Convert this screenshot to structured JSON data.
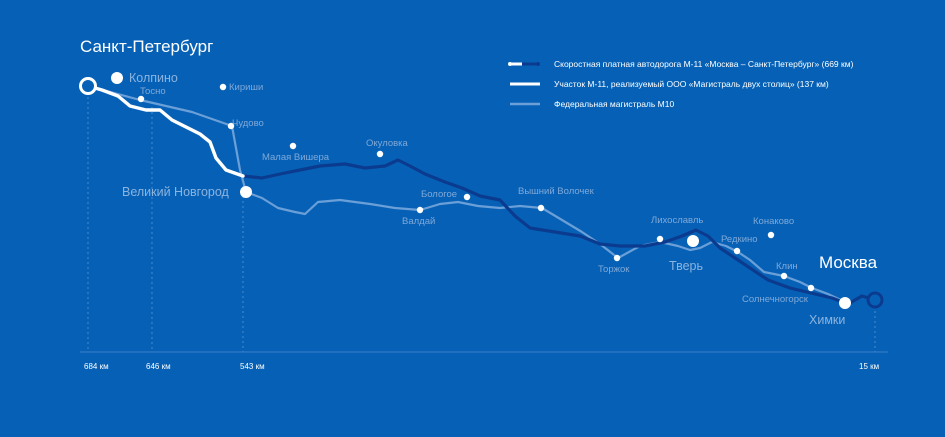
{
  "legend": {
    "m11": "Скоростная платная автодорога М-11 «Москва – Санкт-Петербург» (669 км)",
    "section": "Участок М-11, реализуемый ООО «Магистраль двух столиц» (137 км)",
    "m10": "Федеральная магистраль М10"
  },
  "cities": {
    "spb": "Санкт-Петербург",
    "moscow": "Москва",
    "kolpino": "Колпино",
    "kirishi": "Кириши",
    "tosno": "Тосно",
    "chudovo": "Чудово",
    "malaya_vishera": "Малая Вишера",
    "okulovka": "Окуловка",
    "novgorod": "Великий Новгород",
    "bologoe": "Бологое",
    "valday": "Валдай",
    "vyshny_volochek": "Вышний Волочек",
    "likhoslavl": "Лихославль",
    "konakovo": "Конаково",
    "torzhok": "Торжок",
    "tver": "Тверь",
    "redkino": "Редкино",
    "klin": "Клин",
    "solnechnogorsk": "Солнечногорск",
    "khimki": "Химки"
  },
  "km_marks": {
    "k684": "684 км",
    "k646": "646 км",
    "k543": "543 км",
    "k15": "15 км"
  },
  "colors": {
    "background": "#0661b6",
    "m11": "#0b3b8f",
    "section": "#ffffff",
    "m10": "#6b9fd8",
    "dot": "#ffffff"
  }
}
